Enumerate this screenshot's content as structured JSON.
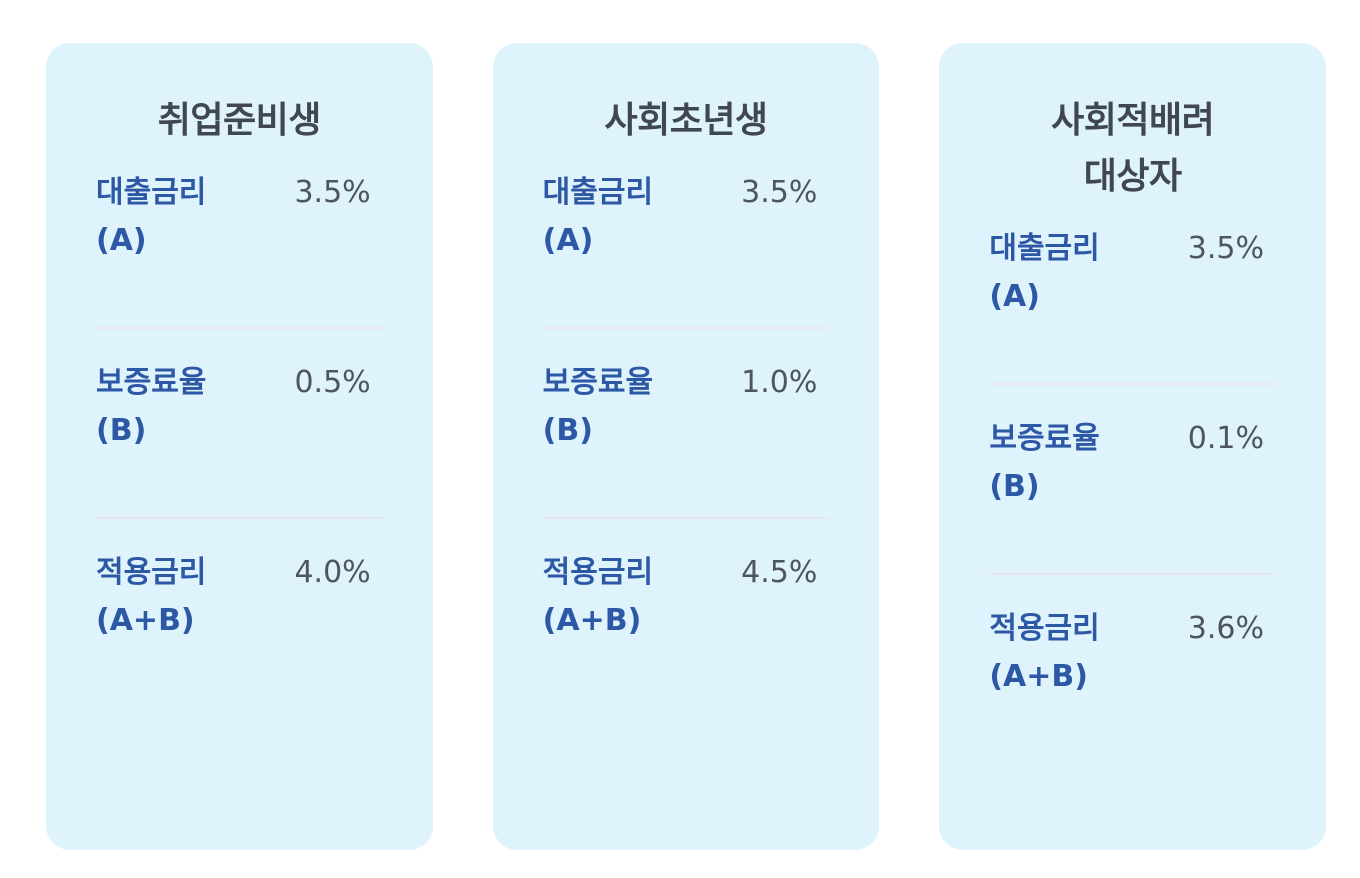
{
  "cards": [
    {
      "title": [
        "취업준비생"
      ],
      "rows": [
        {
          "label": "대출금리",
          "sub": "(A)",
          "value": "3.5%"
        },
        {
          "label": "보증료율",
          "sub": "(B)",
          "value": "0.5%"
        },
        {
          "label": "적용금리",
          "sub": "(A+B)",
          "value": "4.0%"
        }
      ]
    },
    {
      "title": [
        "사회초년생"
      ],
      "rows": [
        {
          "label": "대출금리",
          "sub": "(A)",
          "value": "3.5%"
        },
        {
          "label": "보증료율",
          "sub": "(B)",
          "value": "1.0%"
        },
        {
          "label": "적용금리",
          "sub": "(A+B)",
          "value": "4.5%"
        }
      ]
    },
    {
      "title": [
        "사회적배려",
        "대상자"
      ],
      "rows": [
        {
          "label": "대출금리",
          "sub": "(A)",
          "value": "3.5%"
        },
        {
          "label": "보증료율",
          "sub": "(B)",
          "value": "0.1%"
        },
        {
          "label": "적용금리",
          "sub": "(A+B)",
          "value": "3.6%"
        }
      ]
    }
  ],
  "colors": {
    "card_background": "#dff3fc",
    "title": "#404752",
    "label": "#2c58a6",
    "value": "#4f5560",
    "divider": "#e8e6ee"
  }
}
